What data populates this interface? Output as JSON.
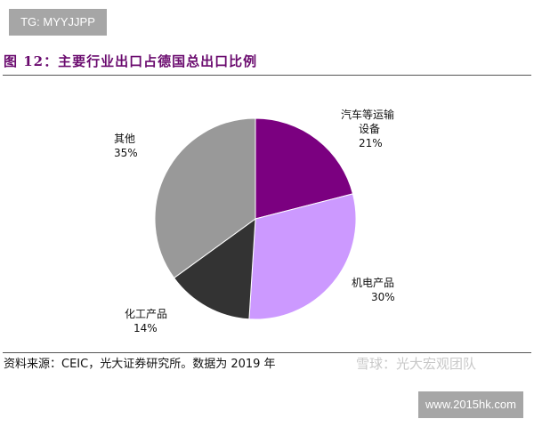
{
  "watermark_tag": "TG: MYYJJPP",
  "figure_title": "图 12：主要行业出口占德国总出口比例",
  "source_note": "资料来源：CEIC，光大证券研究所。数据为 2019 年",
  "watermark_xueqiu": "雪球：光大宏观团队",
  "watermark_site": "www.2015hk.com",
  "chart_data": {
    "type": "pie",
    "start": "top",
    "direction": "clockwise",
    "slices": [
      {
        "label_lines": [
          "汽车等运输",
          "设备"
        ],
        "value": 21,
        "display": "21%",
        "color": "#7B0080"
      },
      {
        "label_lines": [
          "机电产品"
        ],
        "value": 30,
        "display": "30%",
        "color": "#CC99FF"
      },
      {
        "label_lines": [
          "化工产品"
        ],
        "value": 14,
        "display": "14%",
        "color": "#333333"
      },
      {
        "label_lines": [
          "其他"
        ],
        "value": 35,
        "display": "35%",
        "color": "#999999"
      }
    ]
  }
}
